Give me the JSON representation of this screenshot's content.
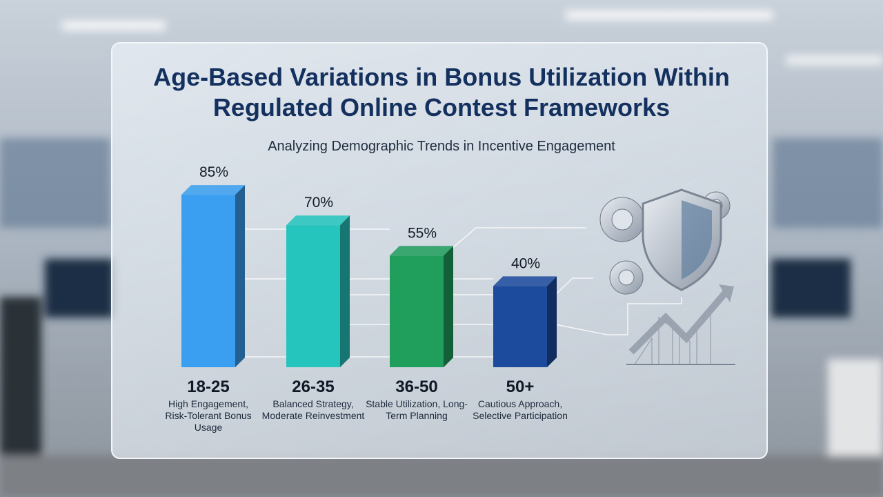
{
  "chart_data": {
    "type": "bar",
    "title": "Age-Based Variations in Bonus Utilization Within Regulated Online Contest Frameworks",
    "subtitle": "Analyzing Demographic Trends in Incentive Engagement",
    "categories": [
      "18-25",
      "26-35",
      "36-50",
      "50+"
    ],
    "descriptions": [
      "High Engagement, Risk-Tolerant Bonus Usage",
      "Balanced Strategy, Moderate Reinvestment",
      "Stable Utilization, Long-Term Planning",
      "Cautious Approach, Selective Participation"
    ],
    "values": [
      85,
      70,
      55,
      40
    ],
    "value_labels": [
      "85%",
      "70%",
      "55%",
      "40%"
    ],
    "colors": [
      "#3a9ff0",
      "#25c4bd",
      "#1f9e5c",
      "#1c4a9c"
    ]
  }
}
